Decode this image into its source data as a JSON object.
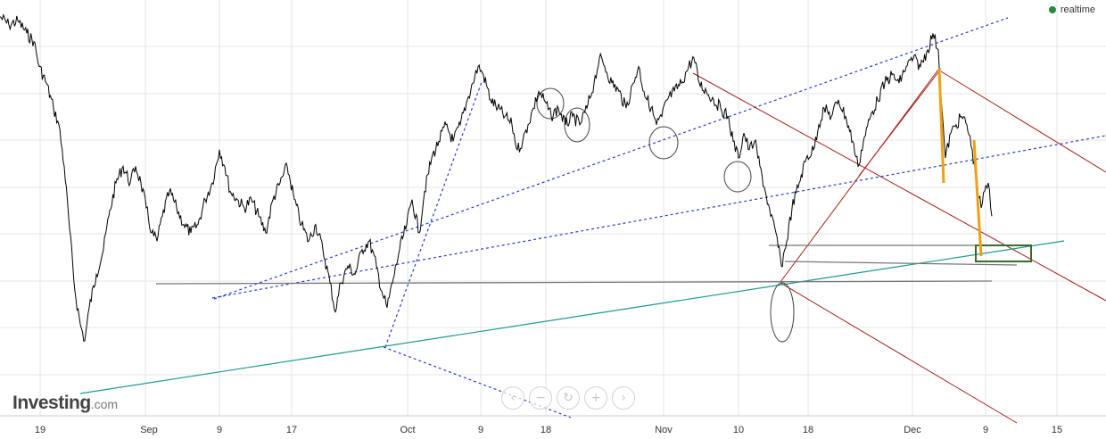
{
  "chart_data": {
    "type": "line",
    "title": "",
    "xlabel": "",
    "ylabel": "",
    "grid": true,
    "x_ticks": [
      "19",
      "Sep",
      "9",
      "17",
      "Oct",
      "9",
      "18",
      "Nov",
      "10",
      "18",
      "Dec",
      "9",
      "15"
    ],
    "y_range": [
      0,
      100
    ],
    "series": [
      {
        "values": [
          [
            0,
            96
          ],
          [
            10,
            94
          ],
          [
            20,
            95
          ],
          [
            30,
            92
          ],
          [
            38,
            90
          ],
          [
            44,
            84
          ],
          [
            52,
            80
          ],
          [
            60,
            74
          ],
          [
            66,
            70
          ],
          [
            72,
            60
          ],
          [
            78,
            45
          ],
          [
            84,
            30
          ],
          [
            90,
            22
          ],
          [
            95,
            18
          ],
          [
            100,
            26
          ],
          [
            108,
            34
          ],
          [
            116,
            40
          ],
          [
            122,
            48
          ],
          [
            130,
            56
          ],
          [
            138,
            60
          ],
          [
            146,
            56
          ],
          [
            152,
            60
          ],
          [
            158,
            56
          ],
          [
            164,
            50
          ],
          [
            170,
            44
          ],
          [
            176,
            42
          ],
          [
            182,
            48
          ],
          [
            190,
            54
          ],
          [
            198,
            50
          ],
          [
            206,
            46
          ],
          [
            214,
            44
          ],
          [
            222,
            46
          ],
          [
            230,
            52
          ],
          [
            238,
            56
          ],
          [
            246,
            64
          ],
          [
            252,
            60
          ],
          [
            258,
            54
          ],
          [
            266,
            52
          ],
          [
            274,
            50
          ],
          [
            282,
            52
          ],
          [
            290,
            48
          ],
          [
            298,
            44
          ],
          [
            306,
            52
          ],
          [
            314,
            56
          ],
          [
            322,
            60
          ],
          [
            330,
            52
          ],
          [
            338,
            46
          ],
          [
            346,
            42
          ],
          [
            354,
            46
          ],
          [
            362,
            40
          ],
          [
            370,
            32
          ],
          [
            376,
            25
          ],
          [
            382,
            32
          ],
          [
            390,
            36
          ],
          [
            398,
            34
          ],
          [
            406,
            40
          ],
          [
            414,
            42
          ],
          [
            422,
            36
          ],
          [
            428,
            30
          ],
          [
            434,
            26
          ],
          [
            440,
            32
          ],
          [
            448,
            40
          ],
          [
            456,
            46
          ],
          [
            462,
            52
          ],
          [
            470,
            44
          ],
          [
            476,
            54
          ],
          [
            484,
            62
          ],
          [
            492,
            66
          ],
          [
            500,
            70
          ],
          [
            508,
            66
          ],
          [
            516,
            70
          ],
          [
            524,
            76
          ],
          [
            530,
            80
          ],
          [
            536,
            84
          ],
          [
            542,
            82
          ],
          [
            550,
            76
          ],
          [
            558,
            74
          ],
          [
            566,
            72
          ],
          [
            574,
            70
          ],
          [
            580,
            64
          ],
          [
            586,
            66
          ],
          [
            592,
            70
          ],
          [
            598,
            74
          ],
          [
            604,
            78
          ],
          [
            610,
            76
          ],
          [
            618,
            72
          ],
          [
            626,
            74
          ],
          [
            634,
            70
          ],
          [
            642,
            72
          ],
          [
            650,
            70
          ],
          [
            658,
            74
          ],
          [
            666,
            80
          ],
          [
            672,
            86
          ],
          [
            678,
            84
          ],
          [
            686,
            80
          ],
          [
            694,
            78
          ],
          [
            702,
            74
          ],
          [
            710,
            80
          ],
          [
            716,
            84
          ],
          [
            722,
            78
          ],
          [
            730,
            74
          ],
          [
            736,
            70
          ],
          [
            742,
            72
          ],
          [
            748,
            76
          ],
          [
            756,
            78
          ],
          [
            764,
            80
          ],
          [
            772,
            84
          ],
          [
            778,
            86
          ],
          [
            784,
            80
          ],
          [
            792,
            78
          ],
          [
            800,
            76
          ],
          [
            808,
            74
          ],
          [
            816,
            72
          ],
          [
            822,
            66
          ],
          [
            828,
            62
          ],
          [
            834,
            68
          ],
          [
            840,
            64
          ],
          [
            846,
            66
          ],
          [
            852,
            60
          ],
          [
            858,
            54
          ],
          [
            864,
            48
          ],
          [
            870,
            44
          ],
          [
            876,
            36
          ],
          [
            882,
            42
          ],
          [
            888,
            50
          ],
          [
            896,
            56
          ],
          [
            904,
            62
          ],
          [
            912,
            64
          ],
          [
            918,
            70
          ],
          [
            924,
            74
          ],
          [
            932,
            72
          ],
          [
            940,
            76
          ],
          [
            948,
            72
          ],
          [
            956,
            66
          ],
          [
            962,
            60
          ],
          [
            968,
            66
          ],
          [
            976,
            72
          ],
          [
            984,
            76
          ],
          [
            992,
            80
          ],
          [
            1000,
            82
          ],
          [
            1008,
            80
          ],
          [
            1016,
            84
          ],
          [
            1024,
            86
          ],
          [
            1032,
            84
          ],
          [
            1040,
            88
          ],
          [
            1046,
            92
          ],
          [
            1052,
            88
          ],
          [
            1056,
            74
          ],
          [
            1060,
            62
          ],
          [
            1066,
            68
          ],
          [
            1072,
            70
          ],
          [
            1078,
            72
          ],
          [
            1084,
            70
          ],
          [
            1090,
            64
          ],
          [
            1096,
            54
          ],
          [
            1100,
            50
          ],
          [
            1104,
            54
          ],
          [
            1108,
            56
          ],
          [
            1112,
            48
          ]
        ]
      }
    ],
    "annotations": {
      "blue_dashed_lines": [
        [
          [
            238,
            334
          ],
          [
            1240,
            152
          ]
        ],
        [
          [
            240,
            335
          ],
          [
            1130,
            20
          ]
        ],
        [
          [
            430,
            389
          ],
          [
            640,
            468
          ]
        ],
        [
          [
            432,
            389
          ],
          [
            540,
            92
          ]
        ]
      ],
      "red_lines": [
        [
          [
            777,
            82
          ],
          [
            1240,
            337
          ]
        ],
        [
          [
            1055,
            80
          ],
          [
            1240,
            193
          ]
        ],
        [
          [
            875,
            317
          ],
          [
            1140,
            474
          ]
        ],
        [
          [
            963,
            197
          ],
          [
            1055,
            77
          ]
        ],
        [
          [
            875,
            316
          ],
          [
            1052,
            78
          ]
        ]
      ],
      "teal_lines": [
        [
          [
            90,
            441
          ],
          [
            1193,
            270
          ]
        ]
      ],
      "gray_lines": [
        [
          [
            175,
            318
          ],
          [
            1112,
            315
          ]
        ],
        [
          [
            862,
            275
          ],
          [
            1117,
            275
          ]
        ],
        [
          [
            880,
            293
          ],
          [
            1140,
            297
          ]
        ]
      ],
      "orange_lines": [
        [
          [
            1053,
            77
          ],
          [
            1058,
            205
          ]
        ],
        [
          [
            1092,
            157
          ],
          [
            1100,
            287
          ]
        ]
      ],
      "ellipses": [
        [
          617,
          116,
          15,
          17
        ],
        [
          647,
          140,
          14,
          19
        ],
        [
          744,
          160,
          16,
          18
        ],
        [
          827,
          198,
          15,
          17
        ],
        [
          877,
          350,
          13,
          33
        ]
      ],
      "rectangles": [
        [
          1094,
          275,
          62,
          18
        ]
      ]
    },
    "colors": {
      "price_line": "#000000",
      "blue_dashed": "#2a3fcc",
      "red": "#a4201a",
      "teal": "#1a9b8c",
      "gray": "#777777",
      "orange": "#f0a010",
      "ellipse": "#444444",
      "rectangle": "#3c6b2c",
      "grid": "#e6e6e6"
    }
  },
  "status": {
    "realtime_label": "realtime"
  },
  "brand": {
    "name": "Investing",
    "suffix": ".com"
  },
  "nav_icons": [
    "chevron-left-icon",
    "minus-icon",
    "reset-icon",
    "plus-icon",
    "chevron-right-icon"
  ]
}
